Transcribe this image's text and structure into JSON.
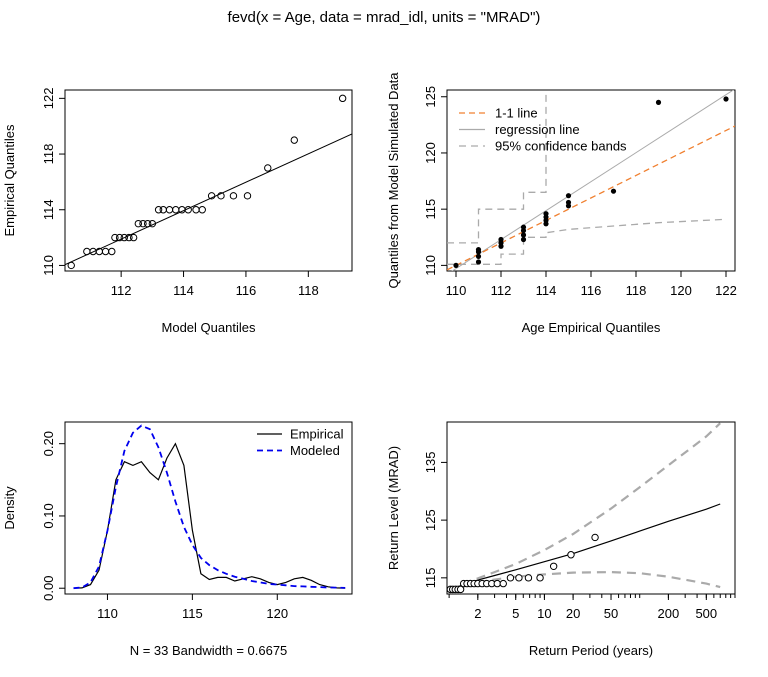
{
  "title": "fevd(x = Age, data = mrad_idl, units = \"MRAD\")",
  "chart_data": [
    {
      "type": "scatter",
      "panel": "qq-model",
      "xlabel": "Model Quantiles",
      "ylabel": "Empirical Quantiles",
      "xlim": [
        110.2,
        119.4
      ],
      "ylim": [
        109.6,
        122.6
      ],
      "xticks": [
        112,
        114,
        116,
        118
      ],
      "yticks": [
        110,
        114,
        118,
        122
      ],
      "points": [
        [
          110.4,
          110
        ],
        [
          110.9,
          111
        ],
        [
          111.1,
          111
        ],
        [
          111.3,
          111
        ],
        [
          111.5,
          111
        ],
        [
          111.7,
          111
        ],
        [
          111.8,
          112
        ],
        [
          111.95,
          112
        ],
        [
          112.1,
          112
        ],
        [
          112.25,
          112
        ],
        [
          112.4,
          112
        ],
        [
          112.55,
          113
        ],
        [
          112.7,
          113
        ],
        [
          112.85,
          113
        ],
        [
          113.0,
          113
        ],
        [
          113.2,
          114
        ],
        [
          113.35,
          114
        ],
        [
          113.55,
          114
        ],
        [
          113.75,
          114
        ],
        [
          113.95,
          114
        ],
        [
          114.15,
          114
        ],
        [
          114.4,
          114
        ],
        [
          114.6,
          114
        ],
        [
          114.9,
          115
        ],
        [
          115.2,
          115
        ],
        [
          115.6,
          115
        ],
        [
          116.05,
          115
        ],
        [
          116.7,
          117
        ],
        [
          117.55,
          119
        ],
        [
          119.1,
          122
        ]
      ],
      "fit_line": [
        [
          110.2,
          110.05
        ],
        [
          119.4,
          119.45
        ]
      ]
    },
    {
      "type": "scatter",
      "panel": "qq-simulated",
      "xlabel": "Age Empirical Quantiles",
      "ylabel": "Quantiles from Model Simulated Data",
      "xlim": [
        109.6,
        122.4
      ],
      "ylim": [
        109.5,
        125.6
      ],
      "xticks": [
        110,
        112,
        114,
        116,
        118,
        120,
        122
      ],
      "yticks": [
        110,
        115,
        120,
        125
      ],
      "legend_position": "top-left",
      "legend": [
        "1-1 line",
        "regression line",
        "95% confidence bands"
      ],
      "points": [
        [
          110,
          110
        ],
        [
          111,
          110.3
        ],
        [
          111,
          110.8
        ],
        [
          111,
          111.2
        ],
        [
          111,
          111.4
        ],
        [
          112,
          111.7
        ],
        [
          112,
          112
        ],
        [
          112,
          112.3
        ],
        [
          113,
          112.3
        ],
        [
          113,
          112.7
        ],
        [
          113,
          113.1
        ],
        [
          113,
          113.4
        ],
        [
          114,
          113.7
        ],
        [
          114,
          114
        ],
        [
          114,
          114.3
        ],
        [
          114,
          114.6
        ],
        [
          115,
          115.3
        ],
        [
          115,
          115.6
        ],
        [
          115,
          116.2
        ],
        [
          117,
          116.6
        ],
        [
          119,
          124.5
        ],
        [
          122,
          124.8
        ]
      ],
      "one_to_one": [
        [
          109.6,
          109.6
        ],
        [
          122.4,
          122.4
        ]
      ],
      "regression": [
        [
          109.6,
          109.2
        ],
        [
          122.4,
          125.7
        ]
      ],
      "upper_band": [
        [
          109.6,
          112
        ],
        [
          111,
          112
        ],
        [
          111,
          115
        ],
        [
          113,
          115
        ],
        [
          113,
          116.5
        ],
        [
          114,
          116.5
        ],
        [
          114,
          125.5
        ]
      ],
      "lower_band": [
        [
          109.6,
          110.1
        ],
        [
          112,
          110.1
        ],
        [
          112,
          111
        ],
        [
          113,
          111
        ],
        [
          113,
          112.5
        ],
        [
          114,
          112.5
        ],
        [
          114,
          112.9
        ],
        [
          115,
          113.2
        ],
        [
          117,
          113.5
        ],
        [
          119,
          113.8
        ],
        [
          122,
          114.1
        ]
      ]
    },
    {
      "type": "line",
      "panel": "density",
      "xlabel": "N = 33   Bandwidth = 0.6675",
      "ylabel": "Density",
      "xlim": [
        107.5,
        124.4
      ],
      "ylim": [
        -0.008,
        0.23
      ],
      "xticks": [
        110,
        115,
        120
      ],
      "yticks": [
        0.0,
        0.1,
        0.2
      ],
      "ytick_labels": [
        "0.00",
        "0.10",
        "0.20"
      ],
      "legend_position": "top-right",
      "series": [
        {
          "name": "Empirical",
          "style": "solid",
          "color": "#000000",
          "x": [
            108,
            108.5,
            109,
            109.5,
            110,
            110.5,
            111,
            111.5,
            112,
            112.5,
            113,
            113.5,
            114,
            114.5,
            115,
            115.5,
            116,
            116.5,
            117,
            117.5,
            118,
            118.5,
            119,
            119.5,
            120,
            120.5,
            121,
            121.5,
            122,
            122.5,
            123,
            123.5,
            124
          ],
          "values": [
            0.0,
            0.0005,
            0.005,
            0.025,
            0.08,
            0.15,
            0.175,
            0.17,
            0.175,
            0.16,
            0.15,
            0.18,
            0.2,
            0.17,
            0.08,
            0.02,
            0.012,
            0.015,
            0.015,
            0.01,
            0.013,
            0.016,
            0.013,
            0.008,
            0.005,
            0.008,
            0.013,
            0.015,
            0.011,
            0.005,
            0.002,
            0.0005,
            0.0
          ]
        },
        {
          "name": "Modeled",
          "style": "dashed",
          "color": "#0000ee",
          "x": [
            108,
            108.5,
            109,
            109.5,
            110,
            110.5,
            111,
            111.5,
            112,
            112.5,
            113,
            113.5,
            114,
            114.5,
            115,
            115.5,
            116,
            116.5,
            117,
            117.5,
            118,
            118.5,
            119,
            119.5,
            120,
            120.5,
            121,
            121.5,
            122,
            122.5,
            123,
            123.5,
            124
          ],
          "values": [
            0.0,
            0.001,
            0.008,
            0.03,
            0.08,
            0.14,
            0.19,
            0.215,
            0.225,
            0.22,
            0.195,
            0.16,
            0.12,
            0.085,
            0.06,
            0.042,
            0.032,
            0.025,
            0.02,
            0.016,
            0.013,
            0.01,
            0.008,
            0.006,
            0.005,
            0.004,
            0.003,
            0.0025,
            0.002,
            0.0015,
            0.001,
            0.0008,
            0.0005
          ]
        }
      ]
    },
    {
      "type": "line",
      "panel": "return-level",
      "xlabel": "Return Period (years)",
      "ylabel": "Return Level (MRAD)",
      "xscale": "log",
      "xlim": [
        0.95,
        1000
      ],
      "ylim": [
        112.2,
        142
      ],
      "xticks": [
        2,
        5,
        10,
        20,
        50,
        200,
        500
      ],
      "yticks": [
        115,
        125,
        135
      ],
      "series": [
        {
          "name": "",
          "style": "solid",
          "color": "#000000",
          "x": [
            1.01,
            1.1,
            1.3,
            1.6,
            2,
            3,
            5,
            10,
            20,
            50,
            100,
            200,
            500,
            700
          ],
          "values": [
            112.6,
            113.1,
            113.6,
            114.1,
            114.6,
            115.4,
            116.4,
            117.8,
            119.2,
            121.4,
            123.1,
            124.8,
            126.9,
            127.8
          ]
        },
        {
          "name": "",
          "style": "dashed",
          "color": "#aaaaaa",
          "x": [
            1.01,
            1.1,
            1.3,
            1.6,
            2,
            3,
            5,
            10,
            20,
            50,
            100,
            200,
            500,
            700
          ],
          "values": [
            112.7,
            113.2,
            113.8,
            114.4,
            114.9,
            116.0,
            117.4,
            119.8,
            122.6,
            127.0,
            130.7,
            134.5,
            139.5,
            141.8
          ]
        },
        {
          "name": "",
          "style": "dashed",
          "color": "#aaaaaa",
          "x": [
            1.01,
            1.1,
            1.3,
            1.6,
            2,
            3,
            5,
            10,
            20,
            50,
            100,
            200,
            500,
            700
          ],
          "values": [
            112.5,
            113.0,
            113.4,
            113.8,
            114.2,
            114.7,
            115.2,
            115.6,
            115.9,
            116.0,
            115.8,
            115.2,
            114.0,
            113.4
          ]
        }
      ],
      "points": [
        [
          1.03,
          113
        ],
        [
          1.09,
          113
        ],
        [
          1.16,
          113
        ],
        [
          1.24,
          113
        ],
        [
          1.32,
          113
        ],
        [
          1.42,
          114
        ],
        [
          1.54,
          114
        ],
        [
          1.68,
          114
        ],
        [
          1.83,
          114
        ],
        [
          2.0,
          114
        ],
        [
          2.22,
          114
        ],
        [
          2.48,
          114
        ],
        [
          2.8,
          114
        ],
        [
          3.2,
          114
        ],
        [
          3.7,
          114
        ],
        [
          4.4,
          115
        ],
        [
          5.4,
          115
        ],
        [
          6.8,
          115
        ],
        [
          9.0,
          115
        ],
        [
          12.5,
          117
        ],
        [
          19,
          119
        ],
        [
          34,
          122
        ]
      ]
    }
  ]
}
